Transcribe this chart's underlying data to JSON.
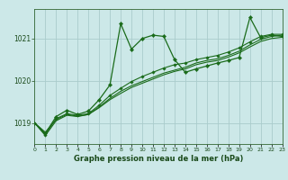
{
  "title": "Graphe pression niveau de la mer (hPa)",
  "bg_color": "#cce8e8",
  "grid_color": "#aacccc",
  "line_color": "#1a6b1a",
  "xlim": [
    0,
    23
  ],
  "ylim": [
    1018.5,
    1021.7
  ],
  "yticks": [
    1019,
    1020,
    1021
  ],
  "xticks": [
    0,
    1,
    2,
    3,
    4,
    5,
    6,
    7,
    8,
    9,
    10,
    11,
    12,
    13,
    14,
    15,
    16,
    17,
    18,
    19,
    20,
    21,
    22,
    23
  ],
  "series1_x": [
    0,
    1,
    2,
    3,
    4,
    5,
    6,
    7,
    8,
    9,
    10,
    11,
    12,
    13,
    14,
    15,
    16,
    17,
    18,
    19,
    20,
    21,
    22,
    23
  ],
  "series1_y": [
    1019.0,
    1018.75,
    1019.15,
    1019.3,
    1019.2,
    1019.28,
    1019.55,
    1019.9,
    1021.35,
    1020.75,
    1021.0,
    1021.08,
    1021.05,
    1020.5,
    1020.2,
    1020.28,
    1020.35,
    1020.42,
    1020.48,
    1020.55,
    1021.5,
    1021.02,
    1021.08,
    1021.05
  ],
  "series2_x": [
    0,
    1,
    2,
    3,
    4,
    5,
    6,
    7,
    8,
    9,
    10,
    11,
    12,
    13,
    14,
    15,
    16,
    17,
    18,
    19,
    20,
    21,
    22,
    23
  ],
  "series2_y": [
    1019.0,
    1018.72,
    1019.1,
    1019.22,
    1019.18,
    1019.22,
    1019.42,
    1019.65,
    1019.82,
    1019.98,
    1020.1,
    1020.2,
    1020.3,
    1020.38,
    1020.42,
    1020.5,
    1020.55,
    1020.6,
    1020.68,
    1020.78,
    1020.92,
    1021.05,
    1021.1,
    1021.1
  ],
  "series3_x": [
    0,
    1,
    2,
    3,
    4,
    5,
    6,
    7,
    8,
    9,
    10,
    11,
    12,
    13,
    14,
    15,
    16,
    17,
    18,
    19,
    20,
    21,
    22,
    23
  ],
  "series3_y": [
    1019.0,
    1018.7,
    1019.05,
    1019.18,
    1019.15,
    1019.2,
    1019.38,
    1019.58,
    1019.75,
    1019.88,
    1019.98,
    1020.08,
    1020.18,
    1020.25,
    1020.32,
    1020.42,
    1020.48,
    1020.52,
    1020.6,
    1020.7,
    1020.85,
    1020.98,
    1021.05,
    1021.08
  ],
  "series4_x": [
    0,
    1,
    2,
    3,
    4,
    5,
    6,
    7,
    8,
    9,
    10,
    11,
    12,
    13,
    14,
    15,
    16,
    17,
    18,
    19,
    20,
    21,
    22,
    23
  ],
  "series4_y": [
    1019.0,
    1018.78,
    1019.08,
    1019.2,
    1019.16,
    1019.2,
    1019.36,
    1019.55,
    1019.7,
    1019.84,
    1019.94,
    1020.04,
    1020.14,
    1020.22,
    1020.28,
    1020.38,
    1020.44,
    1020.48,
    1020.56,
    1020.66,
    1020.8,
    1020.93,
    1021.0,
    1021.03
  ]
}
